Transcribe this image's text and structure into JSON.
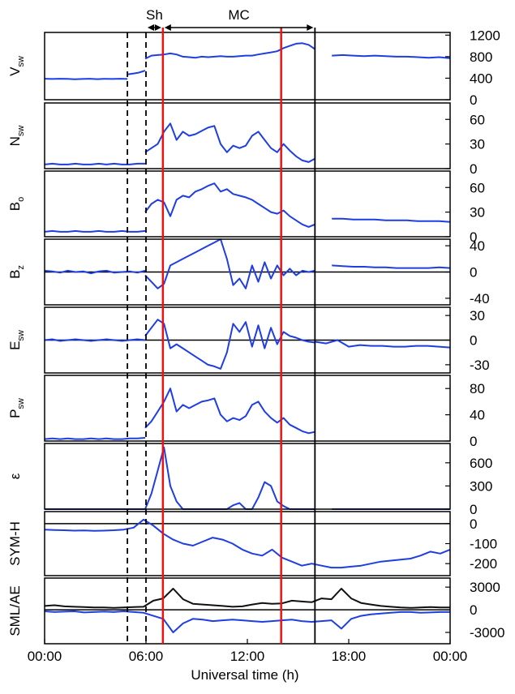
{
  "chart_data": {
    "type": "line",
    "xlabel": "Universal time (h)",
    "x_ticks": [
      "00:00",
      "06:00",
      "12:00",
      "18:00",
      "00:00"
    ],
    "x_tick_hours": [
      0,
      6,
      12,
      18,
      24
    ],
    "xlim": [
      0,
      24
    ],
    "grid": false,
    "markers": {
      "dashed_lines_hours": [
        4.9,
        6.0
      ],
      "red_lines_hours": [
        7.0,
        14.0
      ],
      "black_line_hours": [
        16.0
      ],
      "intervals": [
        {
          "label": "Sh",
          "start": 6.0,
          "end": 7.0
        },
        {
          "label": "MC",
          "start": 7.0,
          "end": 16.0
        }
      ]
    },
    "panels": [
      {
        "label_main": "V",
        "label_sub": "sw",
        "ylim": [
          0,
          1250
        ],
        "ticks": [
          0,
          400,
          800,
          1200
        ],
        "tick_labels": [
          "0",
          "400",
          "800",
          "1200"
        ],
        "zero_line": false,
        "series": [
          {
            "color": "#1f3ee0",
            "segments": [
              {
                "start": 0.0,
                "end": 4.9,
                "values": [
                  390,
                  385,
                  390,
                  388,
                  380,
                  385,
                  390,
                  382,
                  388,
                  385,
                  390,
                  386
                ]
              },
              {
                "start": 4.9,
                "end": 5.95,
                "values": [
                  470,
                  480,
                  490,
                  500,
                  520,
                  540
                ]
              },
              {
                "start": 5.95,
                "end": 16.0,
                "values": [
                  760,
                  820,
                  830,
                  840,
                  860,
                  840,
                  800,
                  790,
                  780,
                  800,
                  790,
                  800,
                  810,
                  800,
                  800,
                  810,
                  820,
                  820,
                  840,
                  860,
                  880,
                  900,
                  960,
                  1000,
                  1040,
                  1050,
                  1020,
                  940
                ]
              },
              {
                "start": 17.0,
                "end": 24.0,
                "values": [
                  820,
                  830,
                  820,
                  810,
                  820,
                  810,
                  800,
                  800,
                  790,
                  780,
                  790,
                  770
                ]
              }
            ]
          }
        ]
      },
      {
        "label_main": "N",
        "label_sub": "sw",
        "ylim": [
          0,
          80
        ],
        "ticks": [
          0,
          30,
          60
        ],
        "tick_labels": [
          "0",
          "30",
          "60"
        ],
        "zero_line": false,
        "series": [
          {
            "color": "#1f3ee0",
            "segments": [
              {
                "start": 0.0,
                "end": 5.95,
                "values": [
                  5,
                  6,
                  5,
                  5,
                  6,
                  5,
                  5,
                  6,
                  5,
                  6,
                  5,
                  5,
                  6,
                  6
                ]
              },
              {
                "start": 5.95,
                "end": 16.0,
                "values": [
                  20,
                  25,
                  30,
                  45,
                  55,
                  35,
                  45,
                  40,
                  42,
                  46,
                  50,
                  52,
                  30,
                  20,
                  28,
                  25,
                  28,
                  40,
                  45,
                  35,
                  25,
                  20,
                  30,
                  22,
                  15,
                  10,
                  8,
                  12
                ]
              }
            ]
          }
        ]
      },
      {
        "label_main": "B",
        "label_sub": "o",
        "ylim": [
          0,
          80
        ],
        "ticks": [
          0,
          30,
          60
        ],
        "tick_labels": [
          "0",
          "30",
          "60"
        ],
        "zero_line": false,
        "series": [
          {
            "color": "#1f3ee0",
            "segments": [
              {
                "start": 0.0,
                "end": 5.95,
                "values": [
                  6,
                  7,
                  6,
                  6,
                  7,
                  6,
                  6,
                  7,
                  6,
                  6,
                  7,
                  6,
                  6,
                  7
                ]
              },
              {
                "start": 5.95,
                "end": 16.0,
                "values": [
                  30,
                  40,
                  45,
                  42,
                  25,
                  45,
                  50,
                  48,
                  55,
                  58,
                  62,
                  65,
                  55,
                  58,
                  52,
                  50,
                  48,
                  45,
                  40,
                  35,
                  30,
                  28,
                  32,
                  25,
                  20,
                  15,
                  12,
                  15
                ]
              },
              {
                "start": 17.0,
                "end": 24.0,
                "values": [
                  22,
                  22,
                  21,
                  21,
                  21,
                  20,
                  20,
                  20,
                  19,
                  19,
                  19,
                  18
                ]
              }
            ]
          }
        ]
      },
      {
        "label_main": "B",
        "label_sub": "z",
        "ylim": [
          -50,
          50
        ],
        "ticks": [
          -40,
          0,
          40
        ],
        "tick_labels": [
          "-40",
          "0",
          "40"
        ],
        "zero_line": true,
        "series": [
          {
            "color": "#1f3ee0",
            "segments": [
              {
                "start": 0.0,
                "end": 5.95,
                "values": [
                  2,
                  1,
                  -1,
                  2,
                  0,
                  1,
                  -2,
                  1,
                  2,
                  -1,
                  0,
                  1,
                  -1,
                  2
                ]
              },
              {
                "start": 5.95,
                "end": 16.0,
                "values": [
                  -5,
                  -15,
                  -25,
                  -18,
                  10,
                  15,
                  20,
                  25,
                  30,
                  35,
                  40,
                  45,
                  50,
                  20,
                  -20,
                  -10,
                  -25,
                  10,
                  -15,
                  15,
                  -10,
                  10,
                  -5,
                  5,
                  -5,
                  2,
                  0,
                  2
                ]
              },
              {
                "start": 17.0,
                "end": 24.0,
                "values": [
                  10,
                  9,
                  8,
                  8,
                  7,
                  7,
                  6,
                  6,
                  6,
                  6,
                  7,
                  6
                ]
              }
            ]
          }
        ]
      },
      {
        "label_main": "E",
        "label_sub": "sw",
        "ylim": [
          -40,
          40
        ],
        "ticks": [
          -30,
          0,
          30
        ],
        "tick_labels": [
          "-30",
          "0",
          "30"
        ],
        "zero_line": true,
        "series": [
          {
            "color": "#1f3ee0",
            "segments": [
              {
                "start": 0.0,
                "end": 5.95,
                "values": [
                  0,
                  1,
                  -1,
                  0,
                  1,
                  0,
                  -1,
                  0,
                  1,
                  0,
                  -1,
                  0,
                  1,
                  0
                ]
              },
              {
                "start": 5.95,
                "end": 16.0,
                "values": [
                  5,
                  15,
                  25,
                  20,
                  -10,
                  -5,
                  -10,
                  -15,
                  -20,
                  -25,
                  -30,
                  -32,
                  -35,
                  -15,
                  20,
                  10,
                  22,
                  -8,
                  18,
                  -10,
                  15,
                  -5,
                  10,
                  5,
                  3,
                  0,
                  -2,
                  -3
                ]
              },
              {
                "start": 16.0,
                "end": 24.0,
                "values": [
                  -2,
                  -4,
                  0,
                  -8,
                  -6,
                  -7,
                  -7,
                  -8,
                  -8,
                  -7,
                  -7,
                  -8,
                  -9
                ]
              }
            ]
          }
        ]
      },
      {
        "label_main": "P",
        "label_sub": "sw",
        "ylim": [
          0,
          100
        ],
        "ticks": [
          0,
          40,
          80
        ],
        "tick_labels": [
          "0",
          "40",
          "80"
        ],
        "zero_line": false,
        "series": [
          {
            "color": "#1f3ee0",
            "segments": [
              {
                "start": 0.0,
                "end": 5.95,
                "values": [
                  3,
                  4,
                  3,
                  4,
                  3,
                  3,
                  4,
                  3,
                  4,
                  3,
                  3,
                  4,
                  4,
                  5
                ]
              },
              {
                "start": 5.95,
                "end": 16.0,
                "values": [
                  20,
                  30,
                  45,
                  60,
                  80,
                  45,
                  55,
                  50,
                  55,
                  60,
                  62,
                  65,
                  40,
                  30,
                  35,
                  32,
                  38,
                  55,
                  60,
                  45,
                  35,
                  28,
                  35,
                  25,
                  20,
                  15,
                  12,
                  14
                ]
              }
            ]
          }
        ]
      },
      {
        "label_main": "ε",
        "label_sub": "",
        "ylim": [
          0,
          850
        ],
        "ticks": [
          0,
          300,
          600
        ],
        "tick_labels": [
          "0",
          "300",
          "600"
        ],
        "zero_line": false,
        "series": [
          {
            "color": "#1f3ee0",
            "segments": [
              {
                "start": 0.0,
                "end": 5.95,
                "values": [
                  0,
                  0,
                  0,
                  0,
                  0,
                  0,
                  0,
                  0,
                  0,
                  0,
                  0,
                  0,
                  0,
                  0
                ]
              },
              {
                "start": 5.95,
                "end": 16.0,
                "values": [
                  0,
                  200,
                  500,
                  800,
                  300,
                  100,
                  0,
                  0,
                  0,
                  0,
                  0,
                  0,
                  0,
                  0,
                  50,
                  80,
                  0,
                  0,
                  150,
                  350,
                  300,
                  100,
                  40,
                  0,
                  0,
                  0,
                  0,
                  0
                ]
              },
              {
                "start": 17.0,
                "end": 24.0,
                "values": [
                  0,
                  0,
                  0,
                  0,
                  0,
                  0,
                  0,
                  0,
                  0,
                  0,
                  0,
                  0
                ]
              }
            ]
          }
        ]
      },
      {
        "label_main": "SYM-H",
        "label_sub": "",
        "ylim": [
          -260,
          60
        ],
        "ticks": [
          -200,
          -100,
          0
        ],
        "tick_labels": [
          "-200",
          "-100",
          "0"
        ],
        "zero_line": true,
        "series": [
          {
            "color": "#1f3ee0",
            "segments": [
              {
                "start": 0.0,
                "end": 24.0,
                "values": [
                  -30,
                  -32,
                  -33,
                  -35,
                  -34,
                  -36,
                  -35,
                  -33,
                  -30,
                  -20,
                  20,
                  -10,
                  -50,
                  -80,
                  -100,
                  -110,
                  -90,
                  -70,
                  -80,
                  -100,
                  -130,
                  -150,
                  -160,
                  -130,
                  -170,
                  -190,
                  -210,
                  -200,
                  -210,
                  -220,
                  -220,
                  -215,
                  -210,
                  -200,
                  -190,
                  -185,
                  -180,
                  -175,
                  -160,
                  -140,
                  -150,
                  -130
                ]
              }
            ]
          }
        ]
      },
      {
        "label_main": "SML/AE",
        "label_sub": "",
        "ylim": [
          -4500,
          4200
        ],
        "ticks": [
          -3000,
          0,
          3000
        ],
        "tick_labels": [
          "-3000",
          "0",
          "3000"
        ],
        "zero_line": true,
        "series": [
          {
            "color": "#111111",
            "segments": [
              {
                "start": 0.0,
                "end": 24.0,
                "values": [
                  500,
                  600,
                  450,
                  400,
                  350,
                  300,
                  300,
                  250,
                  300,
                  350,
                  400,
                  1200,
                  1500,
                  2800,
                  1400,
                  800,
                  700,
                  600,
                  500,
                  400,
                  450,
                  700,
                  900,
                  800,
                  850,
                  1200,
                  1100,
                  1000,
                  1500,
                  1400,
                  2800,
                  1500,
                  900,
                  700,
                  500,
                  400,
                  300,
                  250,
                  300,
                  350,
                  300,
                  300
                ]
              }
            ]
          },
          {
            "color": "#1f3ee0",
            "segments": [
              {
                "start": 0.0,
                "end": 24.0,
                "values": [
                  -200,
                  -300,
                  -250,
                  -200,
                  -350,
                  -300,
                  -250,
                  -300,
                  -200,
                  -300,
                  -400,
                  -800,
                  -1200,
                  -3000,
                  -1800,
                  -1200,
                  -1300,
                  -1500,
                  -1400,
                  -1300,
                  -1400,
                  -1500,
                  -1600,
                  -1500,
                  -1400,
                  -1300,
                  -1500,
                  -1600,
                  -1500,
                  -1400,
                  -2500,
                  -1200,
                  -800,
                  -600,
                  -500,
                  -400,
                  -300,
                  -300,
                  -400,
                  -350,
                  -300,
                  -300
                ]
              }
            ]
          }
        ]
      }
    ]
  }
}
